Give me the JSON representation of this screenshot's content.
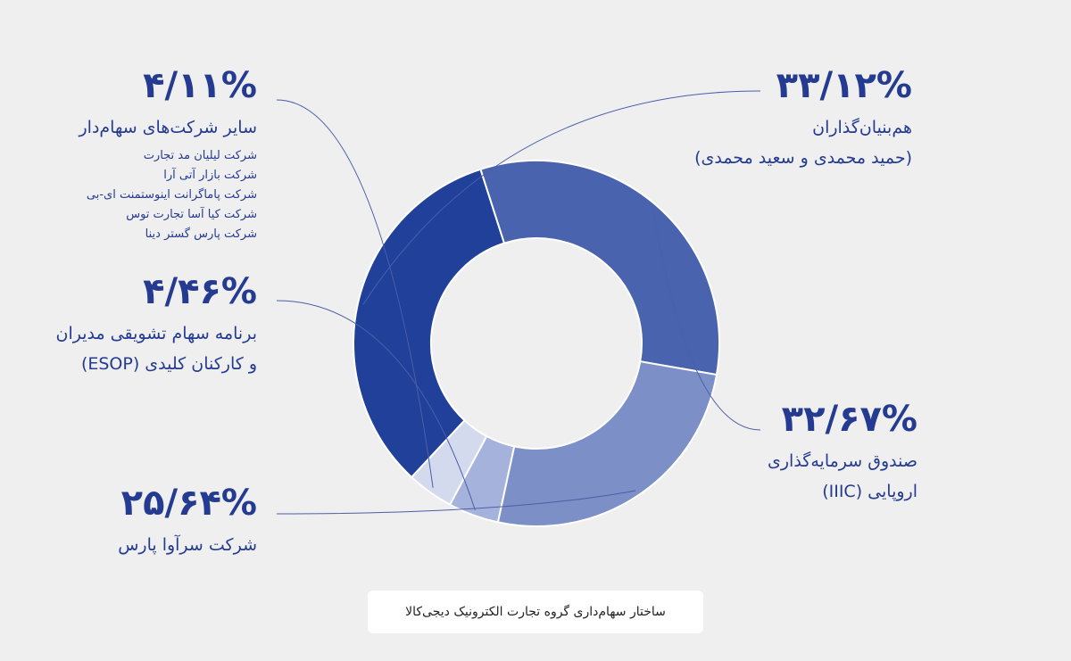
{
  "chart_data": {
    "type": "pie",
    "style": "donut",
    "slices": [
      {
        "name": "هم‌بنیان‌گذاران",
        "name_line2": "(حمید محمدی و سعید محمدی)",
        "value": 33.12,
        "value_label": "۳۳/۱۲%",
        "color": "#21409a"
      },
      {
        "name": "صندوق سرمایه‌گذاری",
        "name_line2": "اروپایی (IIIC)",
        "value": 32.67,
        "value_label": "۳۲/۶۷%",
        "color": "#4a63ae"
      },
      {
        "name": "شرکت سرآوا پارس",
        "name_line2": "",
        "value": 25.64,
        "value_label": "۲۵/۶۴%",
        "color": "#7c8fc6"
      },
      {
        "name": "برنامه سهام تشویقی مدیران",
        "name_line2": "و کارکنان کلیدی (ESOP)",
        "value": 4.46,
        "value_label": "۴/۴۶%",
        "color": "#a5b3dc"
      },
      {
        "name": "سایر شرکت‌های سهام‌دار",
        "name_line2": "",
        "value": 4.11,
        "value_label": "۴/۱۱%",
        "color": "#d3daee",
        "sub_items": [
          "شرکت لیلیان مد تجارت",
          "شرکت بازار آتی آرا",
          "شرکت پاماگرانت اینوستمنت ای-بی",
          "شرکت کیا آسا تجارت توس",
          "شرکت پارس گستر دینا"
        ]
      }
    ],
    "title": ""
  },
  "caption": "ساختار سهام‌داری گروه تجارت الکترونیک دیجی‌کالا",
  "colors": {
    "background": "#efefef",
    "label_text": "#243b91",
    "leader_line": "#4a5fa8"
  }
}
